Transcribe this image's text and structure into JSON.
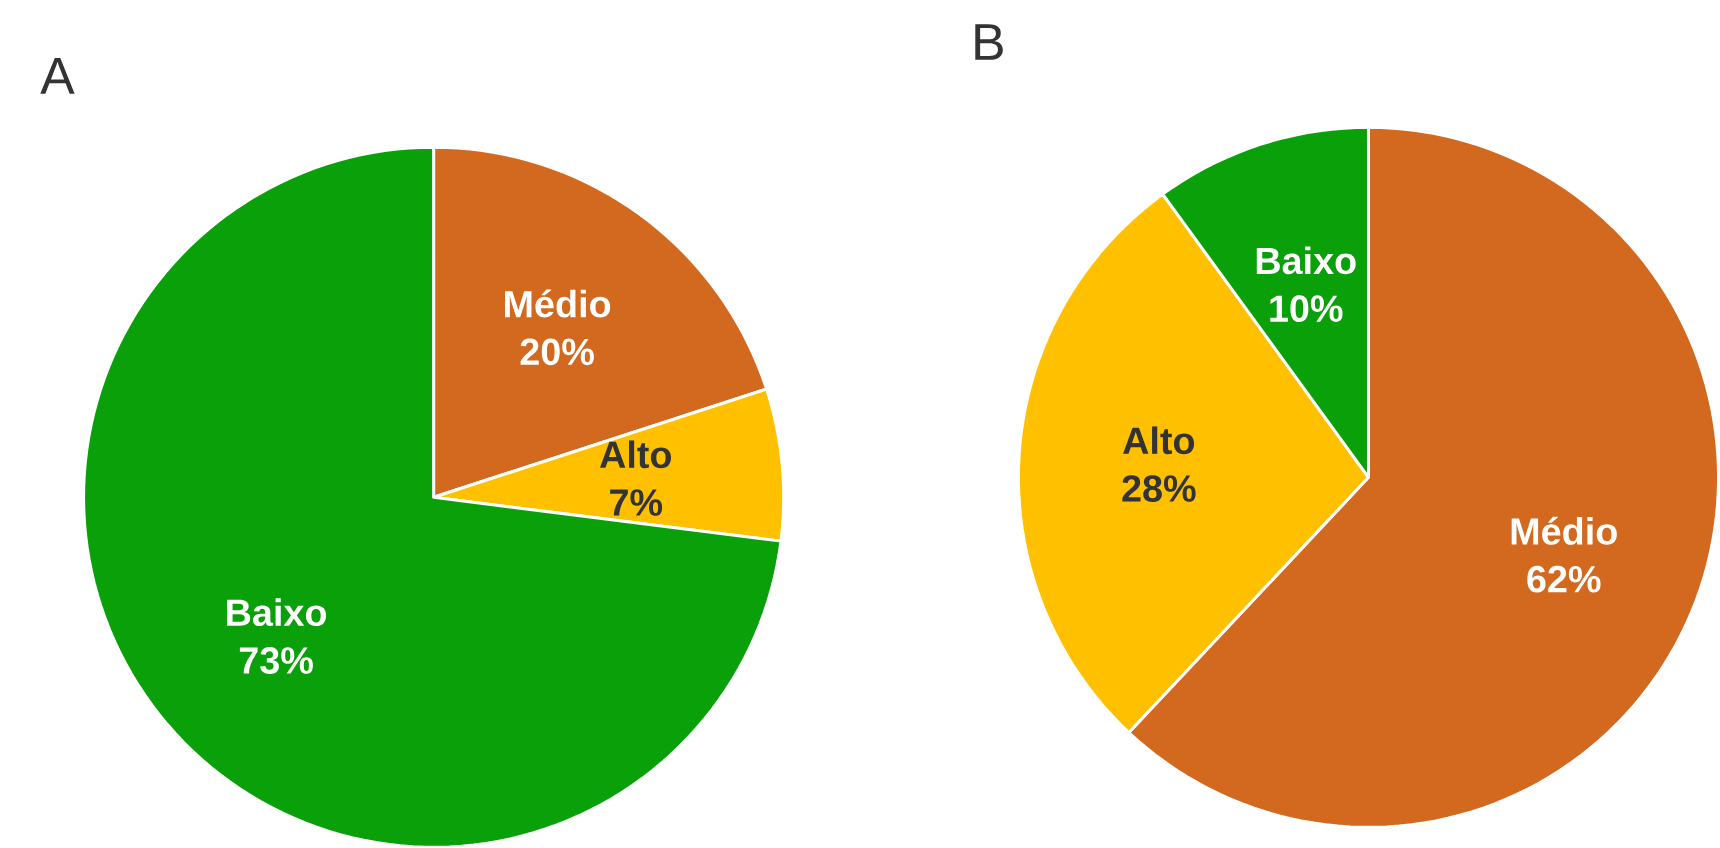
{
  "chart_data": [
    {
      "type": "pie",
      "title": "A",
      "categories": [
        "Médio",
        "Alto",
        "Baixo"
      ],
      "values": [
        20,
        7,
        73
      ],
      "colors": [
        "#d2691e",
        "#ffc000",
        "#0aa00a"
      ],
      "value_labels": [
        "20%",
        "7%",
        "73%"
      ]
    },
    {
      "type": "pie",
      "title": "B",
      "categories": [
        "Médio",
        "Alto",
        "Baixo"
      ],
      "values": [
        62,
        28,
        10
      ],
      "colors": [
        "#d2691e",
        "#ffc000",
        "#0aa00a"
      ],
      "value_labels": [
        "62%",
        "28%",
        "10%"
      ]
    }
  ]
}
